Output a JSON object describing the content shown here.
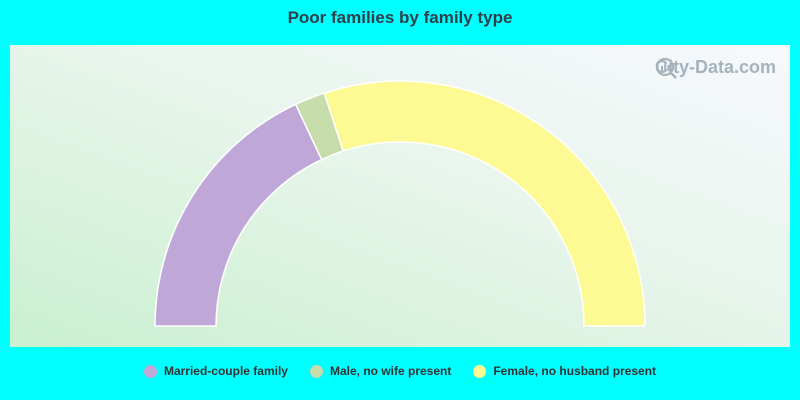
{
  "chart_data": {
    "type": "pie",
    "subtype": "half-donut",
    "title": "Poor families by family type",
    "watermark": "City-Data.com",
    "categories": [
      "Married-couple family",
      "Male, no wife present",
      "Female, no husband present"
    ],
    "values": [
      36,
      4,
      60
    ],
    "colors": [
      "#bfa8d8",
      "#c6dcaa",
      "#fdfa94"
    ],
    "legend_position": "bottom"
  }
}
